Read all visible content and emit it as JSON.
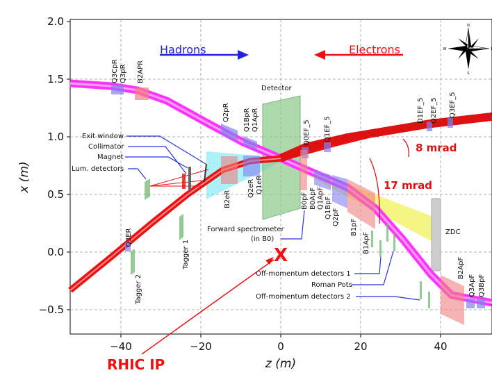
{
  "axes": {
    "x_title": "z (m)",
    "y_title": "x (m)",
    "x_ticks": [
      "−40",
      "−20",
      "0",
      "20",
      "40"
    ],
    "y_ticks": [
      "2.0",
      "1.5",
      "1.0",
      "0.5",
      "0.0",
      "−0.5"
    ],
    "x_range": [
      -52,
      52
    ],
    "y_range": [
      -0.7,
      2.0
    ],
    "grid": true
  },
  "direction_labels": {
    "hadrons": "Hadrons",
    "electrons": "Electrons"
  },
  "components": {
    "detector": "Detector",
    "zdc": "ZDC",
    "q3cpr": "Q3CpR",
    "q3pr": "Q3pR",
    "b2apr": "B2APR",
    "q2pr": "Q2pR",
    "q1bpr": "Q1BpR",
    "q1apr": "Q1ApR",
    "q0ef5": "Q0EF_5",
    "q1ef5": "Q1EF_5",
    "d1ef5": "D1EF_5",
    "q2ef5": "Q2EF_5",
    "q3ef5": "Q3EF_5",
    "b2er": "B2eR",
    "q2er": "Q2eR",
    "q1er": "Q1eR",
    "b0pf": "B0pF",
    "b0apf": "B0ApF",
    "q1apf": "Q1ApF",
    "q1bpf": "Q1BpF",
    "q2pf": "Q2pF",
    "b1pf": "B1pF",
    "b1apf": "B1ApF",
    "q3er": "Q3ER",
    "tagger1": "Tagger 1",
    "tagger2": "Tagger 2",
    "b2apf": "B2ApF",
    "q3apf": "Q3ApF",
    "q3bpf": "Q3BpF"
  },
  "callouts_left": {
    "exit_window": "Exit window",
    "collimator": "Collimator",
    "magnet": "Magnet",
    "lum_detectors": "Lum. detectors"
  },
  "callouts_right": {
    "forward_spectrometer_1": "Forward spectrometer",
    "forward_spectrometer_2": "(in B0)",
    "off_momentum_1": "Off-momentum detectors 1",
    "roman_pots": "Roman Pots",
    "off_momentum_2": "Off-momentum detectors 2"
  },
  "angles": {
    "a8": "8 mrad",
    "a17": "17 mrad"
  },
  "ip": {
    "marker": "X",
    "label": "RHIC IP"
  },
  "compass": {
    "n": "N",
    "s": "S",
    "e": "E",
    "w": "W"
  },
  "colors": {
    "electron_beam": "#ee1111",
    "hadron_beam": "#ff33ff",
    "detector": "#8cc88c",
    "luminosity_cone": "#66e6f0",
    "zdc_cone": "#f0f040",
    "quad_blue": "#8080f0",
    "magnet_red": "#f08080"
  }
}
